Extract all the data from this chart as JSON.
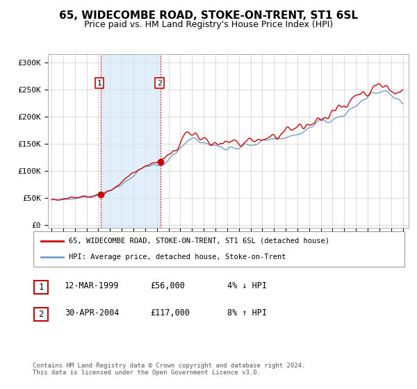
{
  "title": "65, WIDECOMBE ROAD, STOKE-ON-TRENT, ST1 6SL",
  "subtitle": "Price paid vs. HM Land Registry's House Price Index (HPI)",
  "title_fontsize": 11,
  "subtitle_fontsize": 9,
  "ylabel_ticks": [
    "£0",
    "£50K",
    "£100K",
    "£150K",
    "£200K",
    "£250K",
    "£300K"
  ],
  "ytick_values": [
    0,
    50000,
    100000,
    150000,
    200000,
    250000,
    300000
  ],
  "ylim": [
    -5000,
    315000
  ],
  "xlim_start": 1994.7,
  "xlim_end": 2025.5,
  "sale1_x": 1999.19,
  "sale1_y": 56000,
  "sale2_x": 2004.33,
  "sale2_y": 117000,
  "sale1_label": "1",
  "sale2_label": "2",
  "shade_color": "#d0e4f7",
  "vline_color": "#cc0000",
  "legend_line1_color": "#cc0000",
  "legend_line2_color": "#7799cc",
  "legend1_text": "65, WIDECOMBE ROAD, STOKE-ON-TRENT, ST1 6SL (detached house)",
  "legend2_text": "HPI: Average price, detached house, Stoke-on-Trent",
  "table_row1": [
    "1",
    "12-MAR-1999",
    "£56,000",
    "4% ↓ HPI"
  ],
  "table_row2": [
    "2",
    "30-APR-2004",
    "£117,000",
    "8% ↑ HPI"
  ],
  "footnote": "Contains HM Land Registry data © Crown copyright and database right 2024.\nThis data is licensed under the Open Government Licence v3.0.",
  "bg_color": "#ffffff",
  "plot_bg_color": "#ffffff",
  "grid_color": "#cccccc",
  "xtick_years": [
    1995,
    1996,
    1997,
    1998,
    1999,
    2000,
    2001,
    2002,
    2003,
    2004,
    2005,
    2006,
    2007,
    2008,
    2009,
    2010,
    2011,
    2012,
    2013,
    2014,
    2015,
    2016,
    2017,
    2018,
    2019,
    2020,
    2021,
    2022,
    2023,
    2024,
    2025
  ]
}
